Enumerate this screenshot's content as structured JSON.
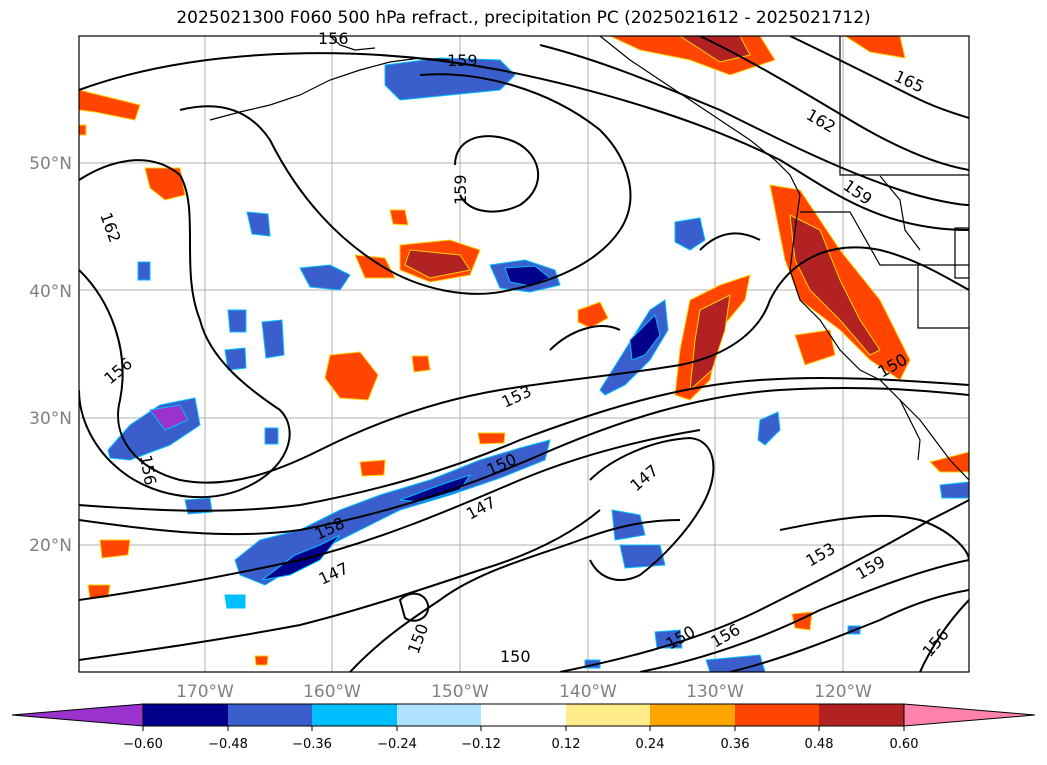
{
  "title": "2025021300 F060 500 hPa refract., precipitation PC (2025021612 - 2025021712)",
  "lat_labels": [
    "50°N",
    "40°N",
    "30°N",
    "20°N"
  ],
  "lon_labels": [
    "170°W",
    "160°W",
    "150°W",
    "140°W",
    "130°W",
    "120°W"
  ],
  "contour_labels": [
    "159",
    "156",
    "165",
    "162",
    "159",
    "159",
    "162",
    "156",
    "156",
    "153",
    "150",
    "147",
    "147",
    "158",
    "147",
    "150",
    "150",
    "150",
    "153",
    "159",
    "156",
    "150",
    "156"
  ],
  "colorbar": {
    "ticks": [
      "−0.60",
      "−0.48",
      "−0.36",
      "−0.24",
      "−0.12",
      "0.12",
      "0.24",
      "0.36",
      "0.48",
      "0.60"
    ],
    "colors": [
      "#9a32cd",
      "#00008b",
      "#3a5fcd",
      "#00bfff",
      "#b0e2ff",
      "#ffffff",
      "#ffec8b",
      "#ffa500",
      "#ff4500",
      "#b22222",
      "#ff82ab"
    ]
  }
}
